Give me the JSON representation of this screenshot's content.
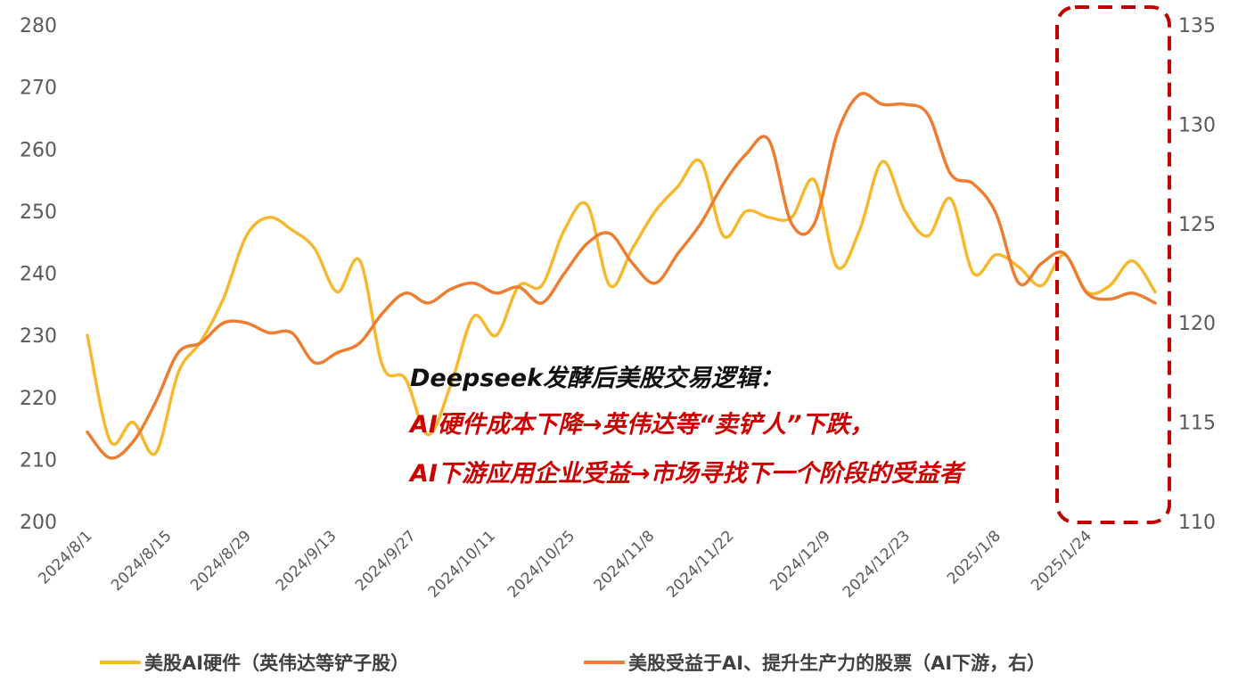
{
  "chart_data": {
    "type": "line",
    "title": "",
    "x": [
      "2024/8/1",
      "2024/8/5",
      "2024/8/9",
      "2024/8/13",
      "2024/8/17",
      "2024/8/21",
      "2024/8/25",
      "2024/8/29",
      "2024/9/2",
      "2024/9/6",
      "2024/9/10",
      "2024/9/14",
      "2024/9/18",
      "2024/9/22",
      "2024/9/26",
      "2024/9/30",
      "2024/10/4",
      "2024/10/8",
      "2024/10/12",
      "2024/10/16",
      "2024/10/20",
      "2024/10/24",
      "2024/10/28",
      "2024/11/1",
      "2024/11/5",
      "2024/11/9",
      "2024/11/13",
      "2024/11/17",
      "2024/11/21",
      "2024/11/25",
      "2024/11/29",
      "2024/12/3",
      "2024/12/7",
      "2024/12/11",
      "2024/12/15",
      "2024/12/19",
      "2024/12/23",
      "2024/12/27",
      "2024/12/31",
      "2025/1/4",
      "2025/1/8",
      "2025/1/12",
      "2025/1/16",
      "2025/1/20",
      "2025/1/24",
      "2025/1/28",
      "2025/2/1",
      "2025/2/5"
    ],
    "x_tick_labels": [
      "2024/8/1",
      "2024/8/15",
      "2024/8/29",
      "2024/9/13",
      "2024/9/27",
      "2024/10/11",
      "2024/10/25",
      "2024/11/8",
      "2024/11/22",
      "2024/12/9",
      "2024/12/23",
      "2025/1/8",
      "2025/1/24"
    ],
    "y_left": {
      "lim": [
        200,
        280
      ],
      "ticks": [
        "200",
        "210",
        "220",
        "230",
        "240",
        "250",
        "260",
        "270",
        "280"
      ]
    },
    "y_right": {
      "lim": [
        110,
        135
      ],
      "ticks": [
        "110",
        "115",
        "120",
        "125",
        "130",
        "135"
      ]
    },
    "series": [
      {
        "name": "美股AI硬件（英伟达等铲子股）",
        "axis": "left",
        "color": "#F5B82E",
        "values": [
          230,
          213,
          216,
          211,
          224,
          229,
          236,
          246,
          249,
          247,
          244,
          237,
          242,
          225,
          223,
          214,
          222,
          233,
          230,
          238,
          238,
          247,
          251,
          238,
          244,
          250,
          254,
          258,
          246,
          250,
          249,
          249,
          255,
          241,
          247,
          258,
          250,
          246,
          252,
          240,
          243,
          241,
          238,
          243,
          237,
          238,
          242,
          237
        ]
      },
      {
        "name": "美股受益于AI、提升生产力的股票（AI下游，右）",
        "axis": "right",
        "color": "#ED7D31",
        "values": [
          114.5,
          113.2,
          114.0,
          116.0,
          118.5,
          119.0,
          120.0,
          120.0,
          119.5,
          119.5,
          118.0,
          118.5,
          119.0,
          120.5,
          121.5,
          121.0,
          121.7,
          122.0,
          121.5,
          121.8,
          121.0,
          122.5,
          124.0,
          124.5,
          123.0,
          122.0,
          123.5,
          125.0,
          127.0,
          128.5,
          129.2,
          125.0,
          125.0,
          129.5,
          131.5,
          131.0,
          131.0,
          130.5,
          127.5,
          127.0,
          125.5,
          122.0,
          123.0,
          123.5,
          121.5,
          121.2,
          121.5,
          121.0
        ]
      }
    ],
    "legend_position": "bottom",
    "annotation": {
      "title": "Deepseek发酵后美股交易逻辑：",
      "line1": "AI硬件成本下降→英伟达等“卖铲人”下跌，",
      "line2": "AI下游应用企业受益→市场寻找下一个阶段的受益者"
    },
    "highlight": {
      "from": "2025/1/20",
      "to": "2025/2/5",
      "style": "dashed box",
      "color": "#C00000"
    }
  }
}
